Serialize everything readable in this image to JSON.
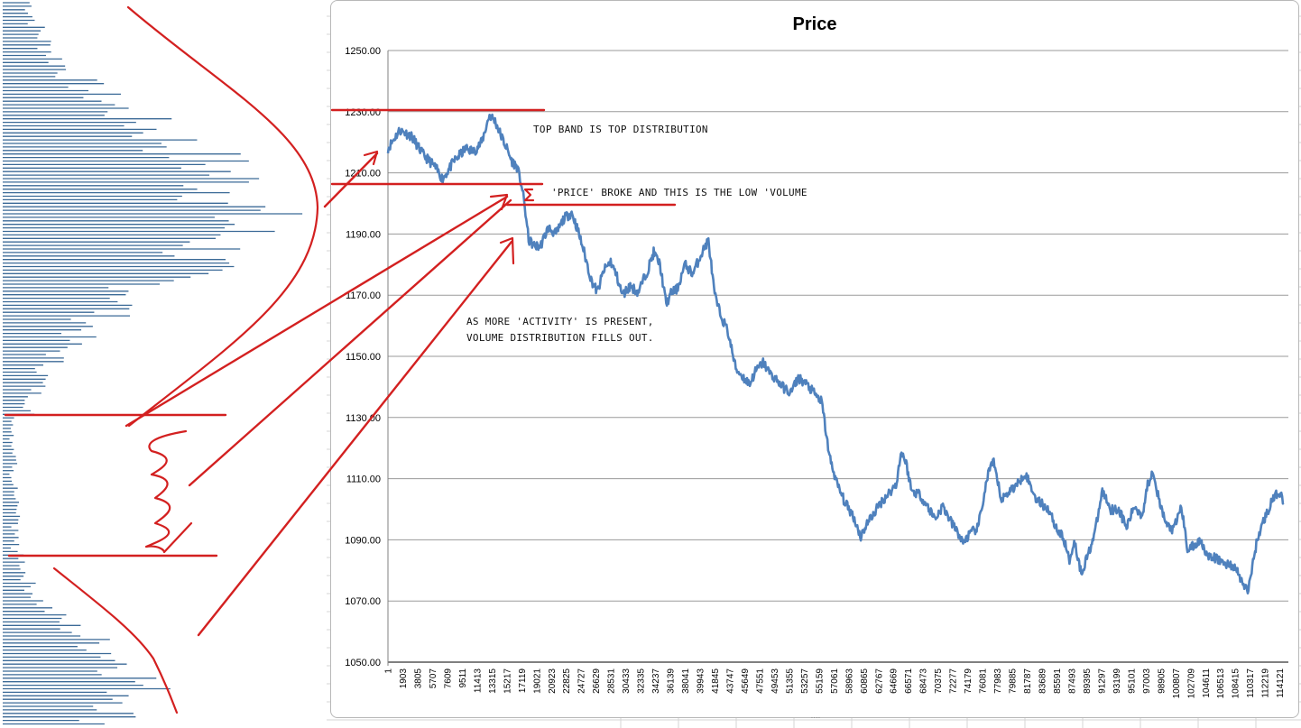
{
  "chart_data": {
    "type": "line",
    "title": "Price",
    "xlabel": "",
    "ylabel": "",
    "ylim": [
      1050,
      1250
    ],
    "y_ticks": [
      "1250.00",
      "1230.00",
      "1210.00",
      "1190.00",
      "1170.00",
      "1150.00",
      "1130.00",
      "1110.00",
      "1090.00",
      "1070.00",
      "1050.00"
    ],
    "x_ticks": [
      "1",
      "1903",
      "3805",
      "5707",
      "7609",
      "9511",
      "11413",
      "13315",
      "15217",
      "17119",
      "19021",
      "20923",
      "22825",
      "24727",
      "26629",
      "28531",
      "30433",
      "32335",
      "34237",
      "36139",
      "38041",
      "39943",
      "41845",
      "43747",
      "45649",
      "47551",
      "49453",
      "51355",
      "53257",
      "55159",
      "57061",
      "58963",
      "60865",
      "62767",
      "64669",
      "66571",
      "68473",
      "70375",
      "72277",
      "74179",
      "76081",
      "77983",
      "79885",
      "81787",
      "83689",
      "85591",
      "87493",
      "89395",
      "91297",
      "93199",
      "95101",
      "97003",
      "98905",
      "100807",
      "102709",
      "104611",
      "106513",
      "108415",
      "110317",
      "112219",
      "114121"
    ],
    "grid": true,
    "legend": "none",
    "series": [
      {
        "color": "#4f81bd",
        "x": [
          1,
          1500,
          3000,
          4500,
          6000,
          7000,
          8500,
          10000,
          11000,
          12000,
          13000,
          13700,
          14500,
          15200,
          15800,
          16500,
          17100,
          17500,
          18000,
          18800,
          19500,
          20500,
          21500,
          22500,
          23500,
          24200,
          25000,
          26000,
          26800,
          27600,
          28500,
          29300,
          30000,
          31000,
          32000,
          33200,
          34000,
          34800,
          35600,
          36300,
          37000,
          38000,
          39000,
          40000,
          41000,
          41800,
          42500,
          43500,
          44500,
          45500,
          46300,
          47000,
          48000,
          49000,
          49500,
          50500,
          51500,
          52500,
          53500,
          54500,
          55500,
          56500,
          57500,
          58500,
          59500,
          60500,
          61200,
          62000,
          63000,
          64000,
          65000,
          65700,
          66300,
          67000,
          68000,
          69000,
          70000,
          71000,
          72000,
          73000,
          73500,
          74500,
          75500,
          76300,
          76900,
          77500,
          78500,
          79500,
          80500,
          81500,
          82000,
          82800,
          83500,
          84500,
          85500,
          86500,
          87200,
          87800,
          88700,
          89800,
          90500,
          91400,
          92500,
          93500,
          94500,
          95500,
          96500,
          97200,
          97900,
          98700,
          99600,
          100500,
          101500,
          102300,
          103200,
          104000,
          105000,
          106000,
          107000,
          107800,
          108600,
          109300,
          110000,
          110500,
          111200,
          112000,
          113000,
          114000,
          114600
        ],
        "y": [
          1218,
          1224,
          1222,
          1216,
          1212,
          1208,
          1214,
          1218,
          1217,
          1220,
          1229,
          1227,
          1222,
          1218,
          1214,
          1212,
          1206,
          1199,
          1188,
          1186,
          1186,
          1192,
          1190,
          1195,
          1197,
          1192,
          1185,
          1175,
          1171,
          1178,
          1181,
          1176,
          1170,
          1173,
          1171,
          1178,
          1184,
          1180,
          1167,
          1171,
          1172,
          1180,
          1177,
          1183,
          1188,
          1170,
          1164,
          1158,
          1146,
          1143,
          1141,
          1145,
          1148,
          1144,
          1143,
          1140,
          1138,
          1143,
          1141,
          1138,
          1135,
          1117,
          1108,
          1102,
          1098,
          1091,
          1095,
          1098,
          1102,
          1105,
          1108,
          1119,
          1115,
          1106,
          1105,
          1101,
          1097,
          1101,
          1096,
          1092,
          1089,
          1092,
          1094,
          1105,
          1113,
          1115,
          1103,
          1106,
          1108,
          1112,
          1109,
          1104,
          1102,
          1100,
          1094,
          1090,
          1083,
          1090,
          1079,
          1087,
          1093,
          1106,
          1100,
          1100,
          1094,
          1101,
          1098,
          1108,
          1113,
          1102,
          1095,
          1093,
          1101,
          1087,
          1088,
          1090,
          1084,
          1084,
          1082,
          1082,
          1080,
          1076,
          1073,
          1080,
          1090,
          1096,
          1102,
          1106,
          1102
        ]
      }
    ]
  },
  "annotations": {
    "top_band": "TOP BAND IS TOP DISTRIBUTION",
    "price_broke": "'PRICE' BROKE AND THIS IS THE LOW 'VOLUME",
    "activity_line1": "AS MORE 'ACTIVITY' IS PRESENT,",
    "activity_line2": "VOLUME DISTRIBUTION FILLS OUT."
  },
  "colors": {
    "series": "#4f81bd",
    "annotation": "#d32020",
    "gridline": "#9a9a9a",
    "volume_bar": "#3b6a97",
    "sheet_grid": "#d4d4d4"
  }
}
